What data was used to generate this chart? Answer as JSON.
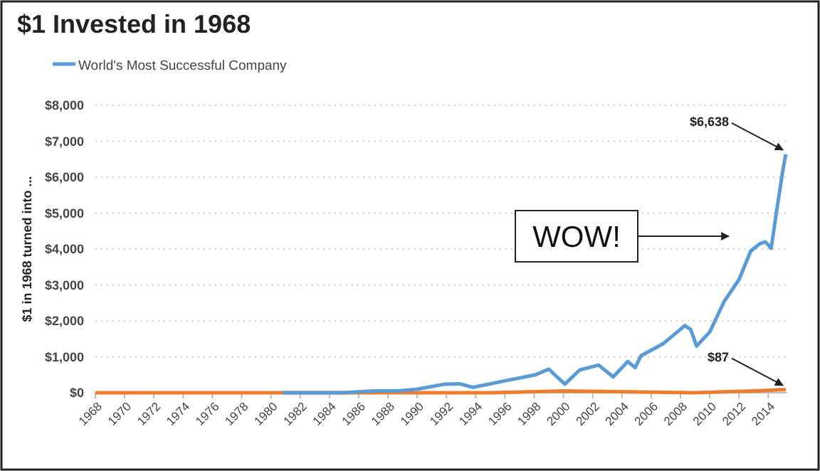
{
  "chart_data": {
    "type": "line",
    "title": "$1 Invested in 1968",
    "ylabel": "$1 in 1968 turned into ...",
    "xlim": [
      1968,
      2015.3
    ],
    "xticks": [
      1968,
      1970,
      1972,
      1974,
      1976,
      1978,
      1980,
      1982,
      1984,
      1986,
      1988,
      1990,
      1992,
      1994,
      1996,
      1998,
      2000,
      2002,
      2004,
      2006,
      2008,
      2010,
      2012,
      2014
    ],
    "ylim": [
      0,
      8000
    ],
    "yticks": [
      {
        "value": 0,
        "label": "$0"
      },
      {
        "value": 1000,
        "label": "$1,000"
      },
      {
        "value": 2000,
        "label": "$2,000"
      },
      {
        "value": 3000,
        "label": "$3,000"
      },
      {
        "value": 4000,
        "label": "$4,000"
      },
      {
        "value": 5000,
        "label": "$5,000"
      },
      {
        "value": 6000,
        "label": "$6,000"
      },
      {
        "value": 7000,
        "label": "$7,000"
      },
      {
        "value": 8000,
        "label": "$8,000"
      }
    ],
    "grid": "y",
    "legend": "top left",
    "line_style": "solid",
    "marker": "none",
    "series": [
      {
        "name": "World's Most Successful Company",
        "color": "#5b9bd5",
        "x": [
          1980.8,
          1983,
          1985,
          1987,
          1988.7,
          1990,
          1991.9,
          1992.9,
          1993.8,
          1996.1,
          1998.1,
          1999,
          1999.4,
          2000.1,
          2001.1,
          2002.4,
          2003.4,
          2004.4,
          2004.9,
          2005.3,
          2006.8,
          2008.3,
          2008.7,
          2009.1,
          2010,
          2011,
          2012,
          2012.8,
          2013.4,
          2013.8,
          2014.2,
          2014.6,
          2015,
          2015.2
        ],
        "values": [
          0,
          0,
          0,
          50,
          50,
          100,
          240,
          250,
          150,
          340,
          500,
          660,
          500,
          240,
          630,
          770,
          440,
          870,
          700,
          1030,
          1360,
          1870,
          1760,
          1300,
          1690,
          2550,
          3150,
          3940,
          4140,
          4200,
          4020,
          5130,
          6190,
          6638
        ]
      },
      {
        "color": "#ed7d31",
        "x": [
          1968,
          1995,
          2000,
          2009,
          2013,
          2015.2
        ],
        "values": [
          0,
          0,
          50,
          0,
          50,
          87
        ]
      }
    ],
    "annotations": [
      {
        "text": "$6,638",
        "x": 2015.2,
        "y": 6638
      },
      {
        "text": "$87",
        "x": 2015.2,
        "y": 87
      },
      "WOW!"
    ]
  }
}
